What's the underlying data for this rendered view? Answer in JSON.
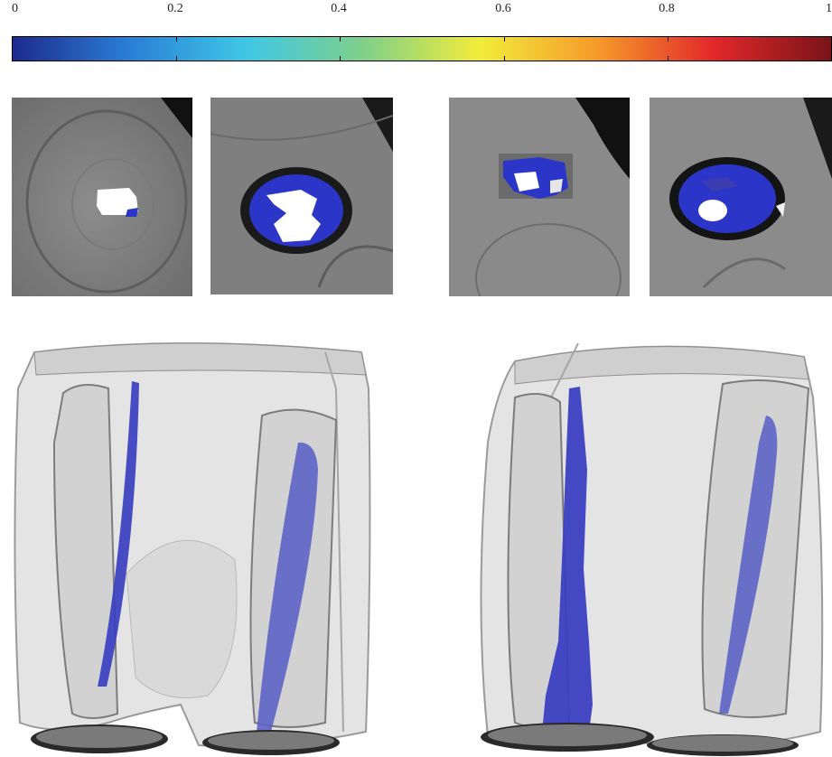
{
  "colorbar": {
    "ticks": [
      "0",
      "0.2",
      "0.4",
      "0.6",
      "0.8",
      "1"
    ],
    "colormap": "jet",
    "colors": [
      "#1d2a8c",
      "#2a7fd6",
      "#3fc7e6",
      "#7fd08a",
      "#f2ec3a",
      "#f59a2a",
      "#e2282a",
      "#7a1418"
    ]
  },
  "scene": {
    "mri_slices": 4,
    "renders_3d": 2,
    "overlay_color": "#2b36c9",
    "marrow_color": "#ffffff"
  }
}
